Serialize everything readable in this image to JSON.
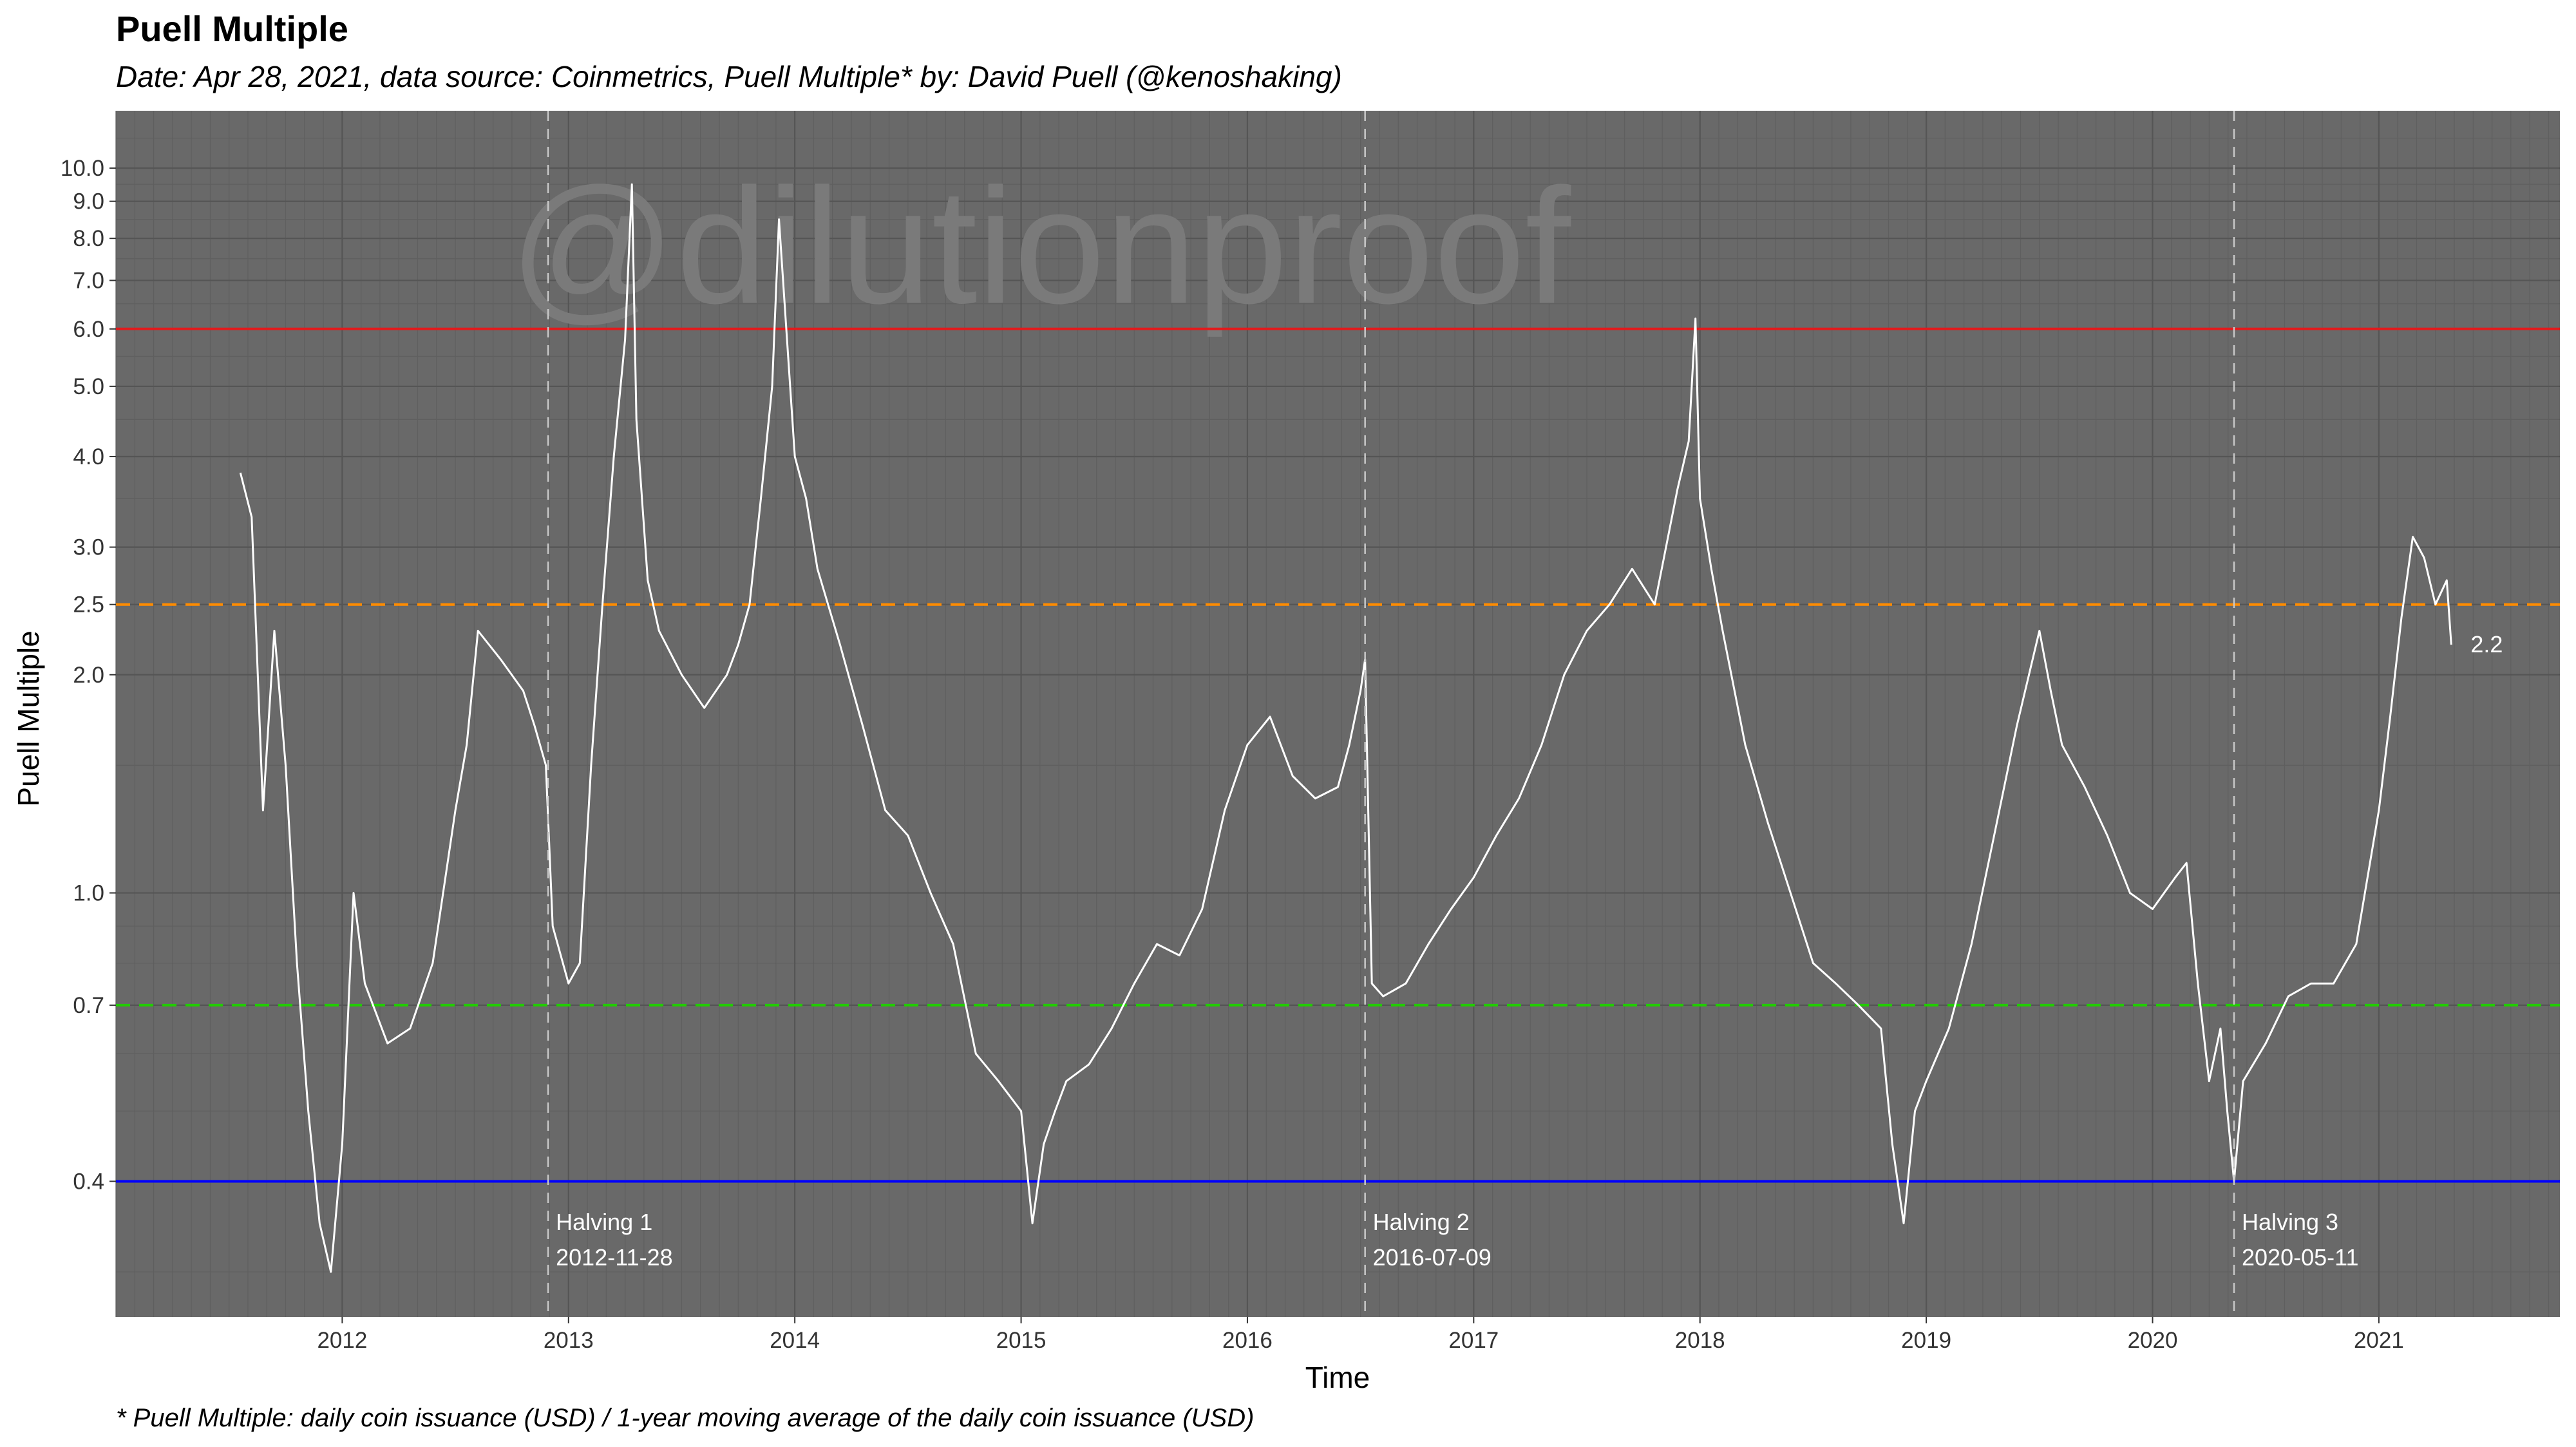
{
  "chart_data": {
    "type": "line",
    "title": "Puell Multiple",
    "subtitle": "Date: Apr 28, 2021, data source: Coinmetrics, Puell Multiple* by: David Puell (@kenoshaking)",
    "caption": "* Puell Multiple: daily coin issuance (USD) / 1-year moving average of the daily coin issuance (USD)",
    "xlabel": "Time",
    "ylabel": "Puell Multiple",
    "watermark": "@dilutionproof",
    "y_scale": "log",
    "xlim": [
      2011.0,
      2021.8
    ],
    "ylim": [
      0.26,
      12.0
    ],
    "x_ticks": [
      "2012",
      "2013",
      "2014",
      "2015",
      "2016",
      "2017",
      "2018",
      "2019",
      "2020",
      "2021"
    ],
    "y_ticks": [
      "0.4",
      "0.7",
      "1.0",
      "2.0",
      "2.5",
      "3.0",
      "4.0",
      "5.0",
      "6.0",
      "7.0",
      "8.0",
      "9.0",
      "10.0"
    ],
    "grid": true,
    "panel_color": "#696969",
    "series": [
      {
        "color": "#ffffff",
        "x": [
          2011.55,
          2011.6,
          2011.65,
          2011.7,
          2011.75,
          2011.8,
          2011.85,
          2011.9,
          2011.95,
          2012.0,
          2012.05,
          2012.1,
          2012.2,
          2012.3,
          2012.4,
          2012.5,
          2012.55,
          2012.6,
          2012.7,
          2012.8,
          2012.85,
          2012.9,
          2012.93,
          2013.0,
          2013.05,
          2013.1,
          2013.15,
          2013.2,
          2013.25,
          2013.28,
          2013.3,
          2013.35,
          2013.4,
          2013.5,
          2013.6,
          2013.7,
          2013.75,
          2013.8,
          2013.85,
          2013.9,
          2013.93,
          2014.0,
          2014.05,
          2014.1,
          2014.2,
          2014.3,
          2014.4,
          2014.5,
          2014.6,
          2014.7,
          2014.8,
          2014.9,
          2015.0,
          2015.05,
          2015.1,
          2015.15,
          2015.2,
          2015.3,
          2015.4,
          2015.5,
          2015.6,
          2015.7,
          2015.8,
          2015.9,
          2016.0,
          2016.1,
          2016.2,
          2016.3,
          2016.4,
          2016.45,
          2016.5,
          2016.52,
          2016.55,
          2016.6,
          2016.7,
          2016.8,
          2016.9,
          2017.0,
          2017.1,
          2017.2,
          2017.3,
          2017.4,
          2017.5,
          2017.6,
          2017.7,
          2017.8,
          2017.85,
          2017.9,
          2017.95,
          2017.98,
          2018.0,
          2018.05,
          2018.1,
          2018.2,
          2018.3,
          2018.4,
          2018.5,
          2018.6,
          2018.7,
          2018.8,
          2018.85,
          2018.9,
          2018.95,
          2019.0,
          2019.1,
          2019.2,
          2019.3,
          2019.4,
          2019.5,
          2019.55,
          2019.6,
          2019.7,
          2019.8,
          2019.9,
          2020.0,
          2020.1,
          2020.15,
          2020.2,
          2020.25,
          2020.3,
          2020.33,
          2020.36,
          2020.4,
          2020.5,
          2020.6,
          2020.7,
          2020.8,
          2020.9,
          2021.0,
          2021.05,
          2021.1,
          2021.15,
          2021.2,
          2021.25,
          2021.3,
          2021.32
        ],
        "y": [
          3.8,
          3.3,
          1.3,
          2.3,
          1.5,
          0.8,
          0.5,
          0.35,
          0.3,
          0.45,
          1.0,
          0.75,
          0.62,
          0.65,
          0.8,
          1.3,
          1.6,
          2.3,
          2.1,
          1.9,
          1.7,
          1.5,
          0.9,
          0.75,
          0.8,
          1.5,
          2.5,
          4.0,
          5.8,
          9.5,
          4.5,
          2.7,
          2.3,
          2.0,
          1.8,
          2.0,
          2.2,
          2.5,
          3.5,
          5.0,
          8.5,
          4.0,
          3.5,
          2.8,
          2.2,
          1.7,
          1.3,
          1.2,
          1.0,
          0.85,
          0.6,
          0.55,
          0.5,
          0.35,
          0.45,
          0.5,
          0.55,
          0.58,
          0.65,
          0.75,
          0.85,
          0.82,
          0.95,
          1.3,
          1.6,
          1.75,
          1.45,
          1.35,
          1.4,
          1.6,
          1.9,
          2.1,
          0.75,
          0.72,
          0.75,
          0.85,
          0.95,
          1.05,
          1.2,
          1.35,
          1.6,
          2.0,
          2.3,
          2.5,
          2.8,
          2.5,
          3.0,
          3.6,
          4.2,
          6.2,
          3.5,
          2.8,
          2.3,
          1.6,
          1.25,
          1.0,
          0.8,
          0.75,
          0.7,
          0.65,
          0.45,
          0.35,
          0.5,
          0.55,
          0.65,
          0.85,
          1.2,
          1.7,
          2.3,
          1.9,
          1.6,
          1.4,
          1.2,
          1.0,
          0.95,
          1.05,
          1.1,
          0.75,
          0.55,
          0.65,
          0.5,
          0.4,
          0.55,
          0.62,
          0.72,
          0.75,
          0.75,
          0.85,
          1.3,
          1.75,
          2.4,
          3.1,
          2.9,
          2.5,
          2.7,
          2.2
        ],
        "end_label": "2.2"
      }
    ],
    "reference_lines": [
      {
        "y": 6.0,
        "color": "#e31a1c",
        "style": "solid"
      },
      {
        "y": 2.5,
        "color": "#ff8c00",
        "style": "dashed"
      },
      {
        "y": 0.7,
        "color": "#22cc00",
        "style": "dashed"
      },
      {
        "y": 0.4,
        "color": "#0000ff",
        "style": "solid"
      }
    ],
    "annotations": [
      {
        "x": 2012.91,
        "label": "Halving 1",
        "date": "2012-11-28"
      },
      {
        "x": 2016.52,
        "label": "Halving 2",
        "date": "2016-07-09"
      },
      {
        "x": 2020.36,
        "label": "Halving 3",
        "date": "2020-05-11"
      }
    ]
  }
}
